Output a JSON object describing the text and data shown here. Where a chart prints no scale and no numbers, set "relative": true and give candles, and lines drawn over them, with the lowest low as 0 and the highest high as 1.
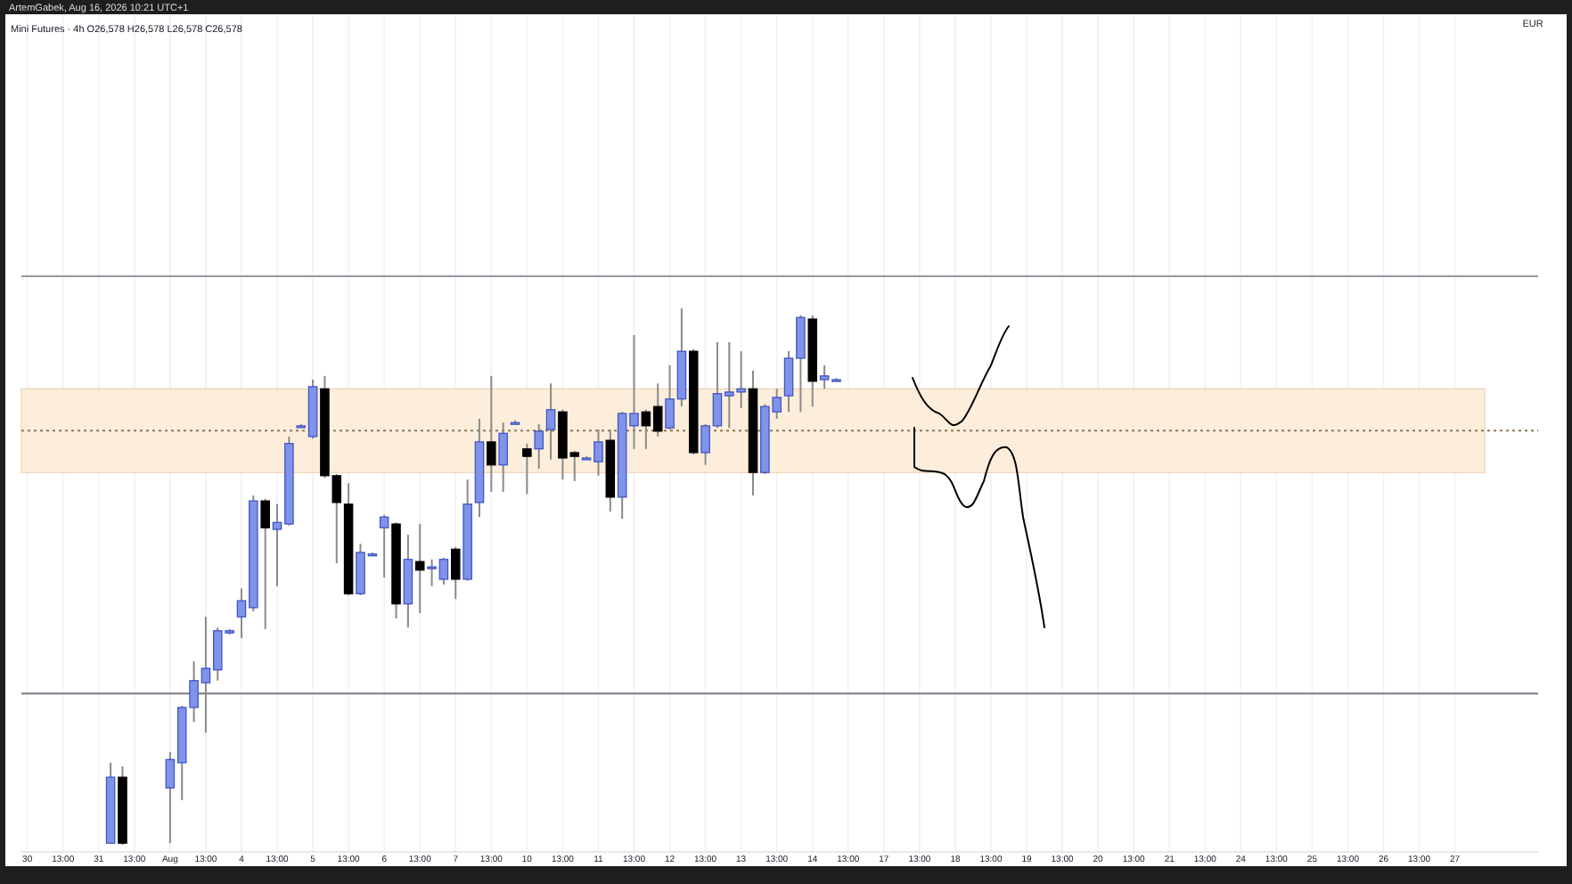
{
  "chart_data": {
    "type": "candlestick",
    "title": "Mini Futures · 4h",
    "subtitle": "O26,578 H26,578 L26,578 C26,578",
    "annotations": [
      "ArtemGabek, Aug 16, 2026 10:21 UTC+1",
      "EUR"
    ],
    "relative": true,
    "grid": "x",
    "categories": [
      "30",
      null,
      null,
      "13:00",
      null,
      null,
      "31",
      null,
      null,
      "13:00",
      null,
      null,
      "Aug",
      null,
      null,
      "13:00",
      null,
      null,
      "4",
      null,
      null,
      "13:00",
      null,
      null,
      "5",
      null,
      null,
      "13:00",
      null,
      null,
      "6",
      null,
      null,
      "13:00",
      null,
      null,
      "7",
      null,
      null,
      "13:00",
      null,
      null,
      "10",
      null,
      null,
      "13:00",
      null,
      null,
      "11",
      null,
      null,
      "13:00",
      null,
      null,
      "12",
      null,
      null,
      "13:00",
      null,
      null,
      "13",
      null,
      null,
      "13:00",
      null,
      null,
      "14",
      null,
      null,
      "13:00",
      null,
      null,
      "17",
      null,
      null,
      "13:00",
      null,
      null,
      "18",
      null,
      null,
      "13:00",
      null,
      null,
      "19",
      null,
      null,
      "13:00",
      null,
      null,
      "20",
      null,
      null,
      "13:00",
      null,
      null,
      "21",
      null,
      null,
      "13:00",
      null,
      null,
      "24",
      null,
      null,
      "13:00",
      null,
      null,
      "25",
      null,
      null,
      "13:00",
      null,
      null,
      "26",
      null,
      null,
      "13:00",
      null,
      null,
      "27",
      null,
      null
    ],
    "ohlc": [
      null,
      null,
      null,
      null,
      null,
      null,
      null,
      [
        0.003,
        0.153,
        0.003,
        0.126
      ],
      [
        0.126,
        0.146,
        0,
        0.003
      ],
      null,
      null,
      null,
      [
        0.106,
        0.173,
        0.003,
        0.159
      ],
      [
        0.153,
        0.259,
        0.083,
        0.256
      ],
      [
        0.256,
        0.342,
        0.229,
        0.306
      ],
      [
        0.302,
        0.425,
        0.209,
        0.329
      ],
      [
        0.326,
        0.405,
        0.306,
        0.399
      ],
      [
        0.395,
        0.402,
        0.392,
        0.399
      ],
      [
        0.425,
        0.478,
        0.385,
        0.455
      ],
      [
        0.442,
        0.651,
        0.435,
        0.641
      ],
      [
        0.641,
        0.645,
        0.402,
        0.591
      ],
      [
        0.588,
        0.635,
        0.482,
        0.601
      ],
      [
        0.598,
        0.761,
        0.595,
        0.748
      ],
      [
        0.781,
        0.784,
        0.777,
        0.781
      ],
      [
        0.761,
        0.867,
        0.757,
        0.854
      ],
      [
        0.85,
        0.874,
        0.684,
        0.688
      ],
      [
        0.688,
        0.691,
        0.525,
        0.638
      ],
      [
        0.635,
        0.674,
        0.465,
        0.468
      ],
      [
        0.468,
        0.561,
        0.465,
        0.545
      ],
      [
        0.542,
        0.545,
        0.538,
        0.542
      ],
      [
        0.591,
        0.615,
        0.498,
        0.611
      ],
      [
        0.598,
        0.601,
        0.422,
        0.449
      ],
      [
        0.449,
        0.578,
        0.405,
        0.532
      ],
      [
        0.528,
        0.598,
        0.432,
        0.512
      ],
      [
        0.515,
        0.532,
        0.482,
        0.518
      ],
      [
        0.495,
        0.535,
        0.485,
        0.532
      ],
      [
        0.551,
        0.555,
        0.458,
        0.495
      ],
      [
        0.495,
        0.681,
        0.492,
        0.635
      ],
      [
        0.638,
        0.794,
        0.611,
        0.751
      ],
      [
        0.751,
        0.874,
        0.658,
        0.708
      ],
      [
        0.708,
        0.787,
        0.658,
        0.767
      ],
      [
        0.787,
        0.791,
        0.784,
        0.787
      ],
      [
        0.738,
        0.748,
        0.654,
        0.724
      ],
      [
        0.738,
        0.784,
        0.701,
        0.771
      ],
      [
        0.774,
        0.86,
        0.718,
        0.811
      ],
      [
        0.807,
        0.811,
        0.681,
        0.721
      ],
      [
        0.731,
        0.734,
        0.678,
        0.724
      ],
      [
        0.721,
        0.724,
        0.718,
        0.721
      ],
      [
        0.714,
        0.774,
        0.688,
        0.751
      ],
      [
        0.754,
        0.774,
        0.621,
        0.648
      ],
      [
        0.648,
        0.807,
        0.608,
        0.804
      ],
      [
        0.781,
        0.95,
        0.738,
        0.804
      ],
      [
        0.807,
        0.811,
        0.738,
        0.781
      ],
      [
        0.817,
        0.86,
        0.761,
        0.771
      ],
      [
        0.777,
        0.894,
        0.774,
        0.831
      ],
      [
        0.831,
        1,
        0.817,
        0.92
      ],
      [
        0.92,
        0.924,
        0.728,
        0.731
      ],
      [
        0.731,
        0.784,
        0.708,
        0.781
      ],
      [
        0.781,
        0.937,
        0.777,
        0.841
      ],
      [
        0.837,
        0.937,
        0.777,
        0.844
      ],
      [
        0.844,
        0.92,
        0.814,
        0.85
      ],
      [
        0.85,
        0.884,
        0.651,
        0.694
      ],
      [
        0.694,
        0.821,
        0.691,
        0.817
      ],
      [
        0.807,
        0.85,
        0.794,
        0.834
      ],
      [
        0.837,
        0.92,
        0.807,
        0.907
      ],
      [
        0.907,
        0.987,
        0.807,
        0.983
      ],
      [
        0.98,
        0.987,
        0.817,
        0.864
      ],
      [
        0.867,
        0.894,
        0.85,
        0.874
      ],
      [
        0.867,
        0.87,
        0.864,
        0.867
      ],
      null,
      null,
      null,
      null,
      null,
      null,
      null,
      null,
      null,
      null,
      null,
      null,
      null,
      null,
      null,
      null,
      null,
      null,
      null,
      null,
      null,
      null,
      null,
      null,
      null,
      null,
      null,
      null,
      null,
      null,
      null,
      null,
      null,
      null,
      null,
      null,
      null,
      null,
      null,
      null,
      null,
      null,
      null,
      null,
      null,
      null,
      null,
      null,
      null,
      null,
      null,
      null,
      null,
      null
    ],
    "colors": [
      null,
      null,
      null,
      null,
      null,
      null,
      null,
      "#7f93e8",
      "#000000",
      null,
      null,
      null,
      "#7f93e8",
      "#7f93e8",
      "#7f93e8",
      "#7f93e8",
      "#7f93e8",
      "#7f93e8",
      "#7f93e8",
      "#7f93e8",
      "#000000",
      "#7f93e8",
      "#7f93e8",
      "#7f93e8",
      "#7f93e8",
      "#000000",
      "#000000",
      "#000000",
      "#7f93e8",
      "#7f93e8",
      "#7f93e8",
      "#000000",
      "#7f93e8",
      "#000000",
      "#7f93e8",
      "#7f93e8",
      "#000000",
      "#7f93e8",
      "#7f93e8",
      "#000000",
      "#7f93e8",
      "#7f93e8",
      "#000000",
      "#7f93e8",
      "#7f93e8",
      "#000000",
      "#000000",
      "#7f93e8",
      "#7f93e8",
      "#000000",
      "#7f93e8",
      "#7f93e8",
      "#000000",
      "#000000",
      "#7f93e8",
      "#7f93e8",
      "#000000",
      "#7f93e8",
      "#7f93e8",
      "#7f93e8",
      "#7f93e8",
      "#000000",
      "#7f93e8",
      "#7f93e8",
      "#7f93e8",
      "#7f93e8",
      "#000000",
      "#7f93e8",
      "#7f93e8",
      null,
      null,
      null,
      null,
      null,
      null,
      null,
      null,
      null,
      null,
      null,
      null,
      null,
      null,
      null,
      null,
      null,
      null,
      null,
      null,
      null,
      null,
      null,
      null,
      null,
      null,
      null,
      null,
      null,
      null,
      null,
      null,
      null,
      null,
      null,
      null,
      null,
      null,
      null,
      null,
      null,
      null,
      null,
      null,
      null,
      null,
      null,
      null,
      null,
      null,
      null,
      null,
      null,
      null
    ],
    "bands": [
      {
        "axis": "y",
        "from": 0.694,
        "to": 0.85,
        "color": "#fdebd3"
      }
    ],
    "ref_lines": [
      {
        "axis": "y",
        "value": 0.282,
        "color": "#787b86",
        "line_style": "solid"
      },
      {
        "axis": "y",
        "value": 1.06,
        "color": "#9598a1",
        "line_style": "solid"
      },
      {
        "axis": "y",
        "value": 0.772,
        "color": "#8c7a5c",
        "line_style": "dotted"
      }
    ]
  }
}
